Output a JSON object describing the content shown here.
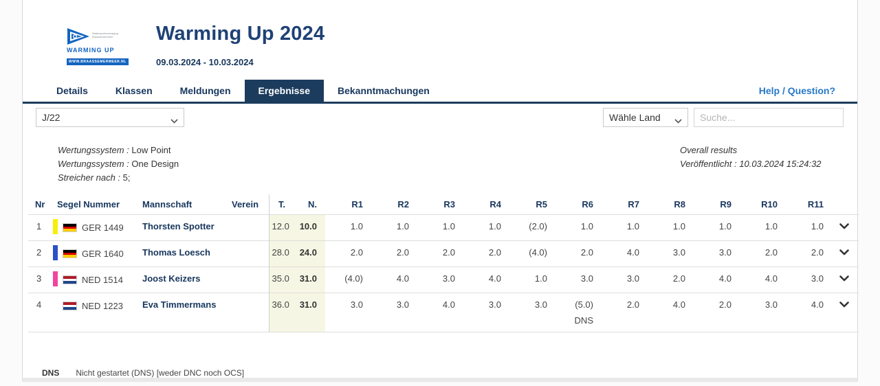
{
  "header": {
    "title": "Warming Up 2024",
    "dates": "09.03.2024 - 10.03.2024",
    "logo": {
      "org_line1": "Watersportvereniging",
      "org_line2": "Braassemermeer",
      "name": "WARMING UP",
      "url": "WWW.BRAASSEMERMEER.NL"
    }
  },
  "tabs": [
    {
      "label": "Details",
      "active": false
    },
    {
      "label": "Klassen",
      "active": false
    },
    {
      "label": "Meldungen",
      "active": false
    },
    {
      "label": "Ergebnisse",
      "active": true
    },
    {
      "label": "Bekanntmachungen",
      "active": false
    }
  ],
  "help_link": "Help / Question?",
  "filters": {
    "class_selected": "J/22",
    "country_selected": "Wähle Land",
    "search_placeholder": "Suche..."
  },
  "info": {
    "left_lines": [
      {
        "label": "Wertungssystem",
        "value": "Low Point"
      },
      {
        "label": "Wertungssystem",
        "value": "One Design"
      },
      {
        "label": "Streicher nach",
        "value": "5;"
      }
    ],
    "right_line1": "Overall results",
    "right_label": "Veröffentlicht",
    "right_value": "10.03.2024 15:24:32"
  },
  "colors": {
    "accent_navy": "#1c3c5e",
    "link_blue": "#2779c9",
    "score_bg": "#f6f6e4",
    "flag_GER": [
      "#000000",
      "#dd0000",
      "#ffce00"
    ],
    "flag_NED": [
      "#ae1c28",
      "#ffffff",
      "#21468b"
    ]
  },
  "table": {
    "fixed_columns": [
      "Nr",
      "Segel Nummer",
      "Mannschaft",
      "Verein",
      "T.",
      "N."
    ],
    "race_columns": [
      "R1",
      "R2",
      "R3",
      "R4",
      "R5",
      "R6",
      "R7",
      "R8",
      "R9",
      "R10",
      "R11"
    ],
    "rows": [
      {
        "nr": "1",
        "bar_color": "#f7ef0a",
        "flag": "GER",
        "sail": "GER 1449",
        "team": "Thorsten Spotter",
        "verein": "",
        "total": "12.0",
        "net": "10.0",
        "races": [
          "1.0",
          "1.0",
          "1.0",
          "1.0",
          "(2.0)",
          "1.0",
          "1.0",
          "1.0",
          "1.0",
          "1.0",
          "1.0"
        ]
      },
      {
        "nr": "2",
        "bar_color": "#2b50c8",
        "flag": "GER",
        "sail": "GER 1640",
        "team": "Thomas Loesch",
        "verein": "",
        "total": "28.0",
        "net": "24.0",
        "races": [
          "2.0",
          "2.0",
          "2.0",
          "2.0",
          "(4.0)",
          "2.0",
          "4.0",
          "3.0",
          "3.0",
          "2.0",
          "2.0"
        ]
      },
      {
        "nr": "3",
        "bar_color": "#f2459c",
        "flag": "NED",
        "sail": "NED 1514",
        "team": "Joost Keizers",
        "verein": "",
        "total": "35.0",
        "net": "31.0",
        "races": [
          "(4.0)",
          "4.0",
          "3.0",
          "4.0",
          "1.0",
          "3.0",
          "3.0",
          "2.0",
          "4.0",
          "4.0",
          "3.0"
        ]
      },
      {
        "nr": "4",
        "bar_color": "",
        "flag": "NED",
        "sail": "NED 1223",
        "team": "Eva Timmermans",
        "verein": "",
        "total": "36.0",
        "net": "31.0",
        "races": [
          "3.0",
          "3.0",
          "4.0",
          "3.0",
          "3.0",
          {
            "v": "(5.0)",
            "note": "DNS"
          },
          "2.0",
          "4.0",
          "2.0",
          "3.0",
          "4.0"
        ]
      }
    ]
  },
  "legend": {
    "code": "DNS",
    "text": "Nicht gestartet (DNS) [weder DNC noch OCS]"
  }
}
